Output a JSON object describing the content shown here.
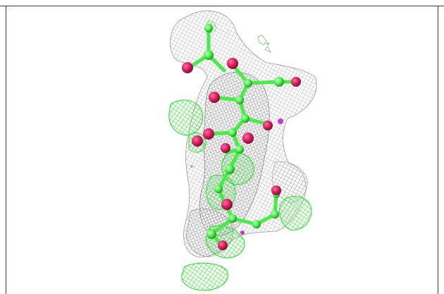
{
  "scene": {
    "subject": "electron-density-mesh-with-ball-and-stick-molecule",
    "colors": {
      "background": "#ffffff",
      "density_mesh": "#b8b8b8",
      "difference_mesh": "#33ff33",
      "carbon_bond": "#44ee44",
      "oxygen_atom": "#d81b60",
      "magenta_blob": "#cc33cc",
      "frame": "#3a3a3a"
    }
  }
}
